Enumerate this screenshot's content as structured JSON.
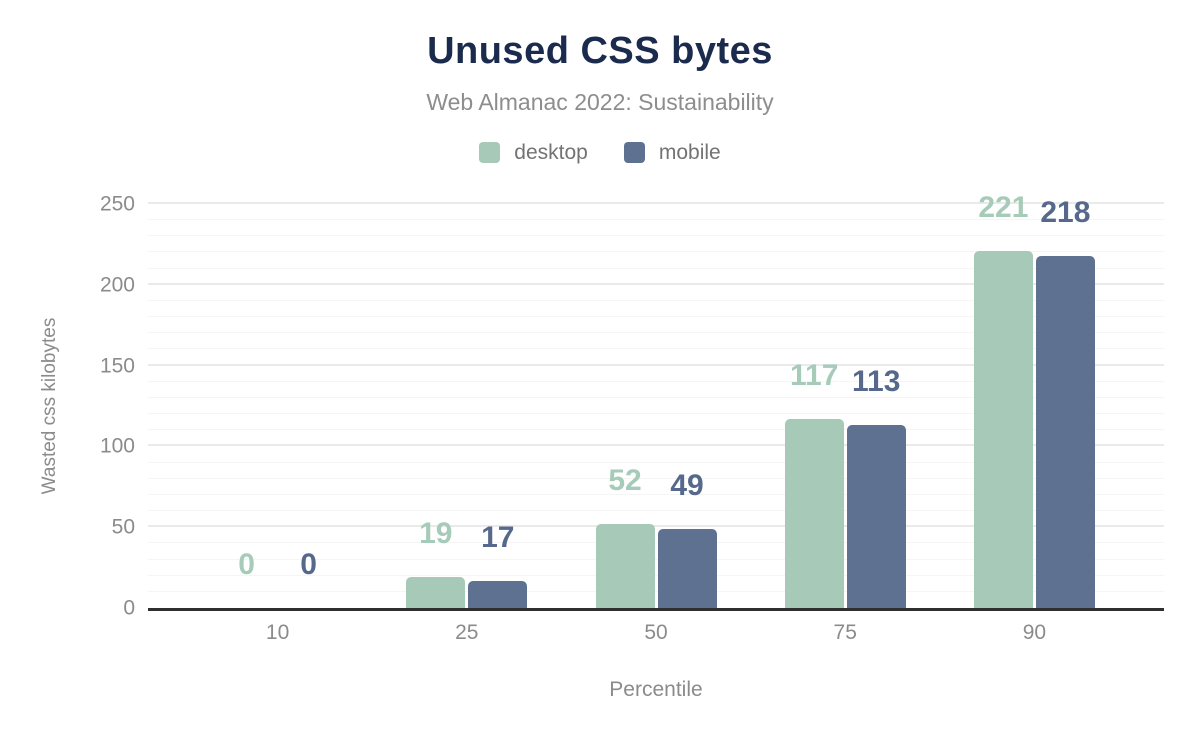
{
  "header": {
    "title": "Unused CSS bytes",
    "subtitle": "Web Almanac 2022: Sustainability"
  },
  "legend": [
    {
      "label": "desktop",
      "color": "#a7c9b8"
    },
    {
      "label": "mobile",
      "color": "#5e7190"
    }
  ],
  "chart_data": {
    "type": "bar",
    "title": "Unused CSS bytes",
    "subtitle": "Web Almanac 2022: Sustainability",
    "categories": [
      "10",
      "25",
      "50",
      "75",
      "90"
    ],
    "series": [
      {
        "name": "desktop",
        "color": "#a7c9b8",
        "label_color": "#a7cbb9",
        "values": [
          0,
          19,
          52,
          117,
          221
        ]
      },
      {
        "name": "mobile",
        "color": "#5e7190",
        "label_color": "#56698c",
        "values": [
          0,
          17,
          49,
          113,
          218
        ]
      }
    ],
    "xlabel": "Percentile",
    "ylabel": "Wasted css kilobytes",
    "ylim": [
      0,
      250
    ],
    "yticks": [
      0,
      50,
      100,
      150,
      200,
      250
    ],
    "minor_grid_step": 10,
    "major_grid_step": 50,
    "grid": true,
    "legend_position": "top",
    "value_labels_shown": true
  }
}
